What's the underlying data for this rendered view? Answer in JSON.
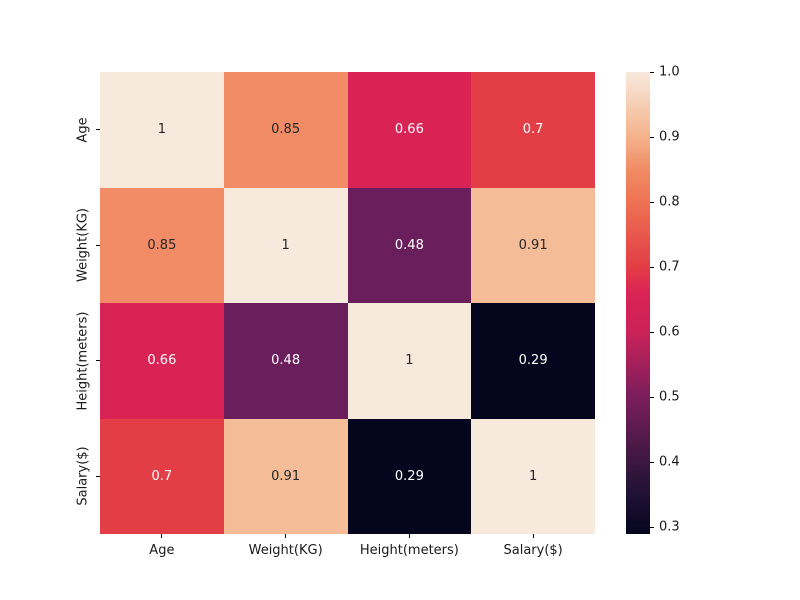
{
  "chart_data": {
    "type": "heatmap",
    "title": "",
    "xlabel": "",
    "ylabel": "",
    "x_categories": [
      "Age",
      "Weight(KG)",
      "Height(meters)",
      "Salary($)"
    ],
    "y_categories": [
      "Age",
      "Weight(KG)",
      "Height(meters)",
      "Salary($)"
    ],
    "matrix": [
      [
        1,
        0.85,
        0.66,
        0.7
      ],
      [
        0.85,
        1,
        0.48,
        0.91
      ],
      [
        0.66,
        0.48,
        1,
        0.29
      ],
      [
        0.7,
        0.91,
        0.29,
        1
      ]
    ],
    "colormap": "rocket",
    "vmin": 0.29,
    "vmax": 1.0,
    "colorbar_ticks": [
      1.0,
      0.9,
      0.8,
      0.7,
      0.6,
      0.5,
      0.4,
      0.3
    ],
    "legend_position": "right-colorbar",
    "grid": false,
    "background": "#ffffff"
  },
  "cells": [
    {
      "label": "1",
      "bg": "#f8e9dd",
      "fg": "#262626"
    },
    {
      "label": "0.85",
      "bg": "#f18c66",
      "fg": "#262626"
    },
    {
      "label": "0.66",
      "bg": "#d92355",
      "fg": "#ffffff"
    },
    {
      "label": "0.7",
      "bg": "#e33d46",
      "fg": "#ffffff"
    },
    {
      "label": "0.85",
      "bg": "#f18c66",
      "fg": "#262626"
    },
    {
      "label": "1",
      "bg": "#f8e9dd",
      "fg": "#262626"
    },
    {
      "label": "0.48",
      "bg": "#6a1f5c",
      "fg": "#ffffff"
    },
    {
      "label": "0.91",
      "bg": "#f5bd97",
      "fg": "#262626"
    },
    {
      "label": "0.66",
      "bg": "#d92355",
      "fg": "#ffffff"
    },
    {
      "label": "0.48",
      "bg": "#6a1f5c",
      "fg": "#ffffff"
    },
    {
      "label": "1",
      "bg": "#f8e9dd",
      "fg": "#262626"
    },
    {
      "label": "0.29",
      "bg": "#05051e",
      "fg": "#ffffff"
    },
    {
      "label": "0.7",
      "bg": "#e33d46",
      "fg": "#ffffff"
    },
    {
      "label": "0.91",
      "bg": "#f5bd97",
      "fg": "#262626"
    },
    {
      "label": "0.29",
      "bg": "#05051e",
      "fg": "#ffffff"
    },
    {
      "label": "1",
      "bg": "#f8e9dd",
      "fg": "#262626"
    }
  ],
  "colorbar": {
    "ticks": [
      {
        "label": "1.0",
        "value": 1.0
      },
      {
        "label": "0.9",
        "value": 0.9
      },
      {
        "label": "0.8",
        "value": 0.8
      },
      {
        "label": "0.7",
        "value": 0.7
      },
      {
        "label": "0.6",
        "value": 0.6
      },
      {
        "label": "0.5",
        "value": 0.5
      },
      {
        "label": "0.4",
        "value": 0.4
      },
      {
        "label": "0.3",
        "value": 0.3
      }
    ],
    "gradient": [
      {
        "stop": 0,
        "color": "#05051e"
      },
      {
        "stop": 8,
        "color": "#1e1133"
      },
      {
        "stop": 15.5,
        "color": "#3b173f"
      },
      {
        "stop": 29.6,
        "color": "#7a1e5c"
      },
      {
        "stop": 43.7,
        "color": "#cb2259"
      },
      {
        "stop": 52.1,
        "color": "#d92355"
      },
      {
        "stop": 57.7,
        "color": "#e33d46"
      },
      {
        "stop": 71.8,
        "color": "#ee7253"
      },
      {
        "stop": 78.9,
        "color": "#f18c66"
      },
      {
        "stop": 85.9,
        "color": "#f4b28b"
      },
      {
        "stop": 100,
        "color": "#f8e9dd"
      }
    ]
  }
}
